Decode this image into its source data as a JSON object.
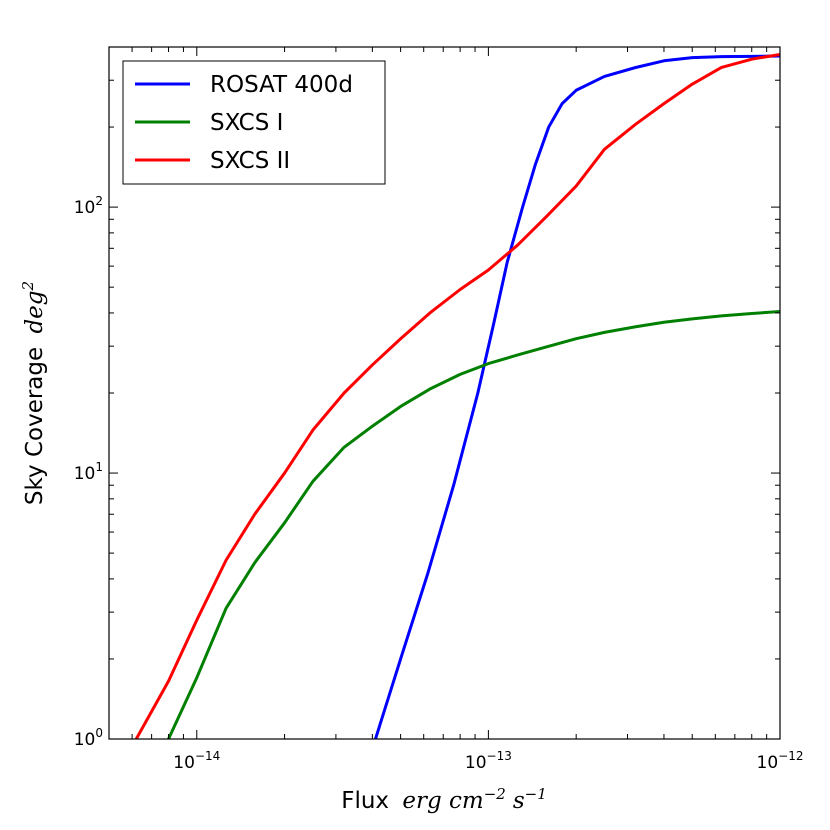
{
  "chart_data": {
    "type": "line",
    "xscale": "log",
    "yscale": "log",
    "xlim": [
      5e-15,
      1e-12
    ],
    "ylim": [
      1,
      400
    ],
    "grid": false,
    "legend_position": "top-left",
    "xlabel": {
      "text": "Flux",
      "math": "erg cm",
      "exp1": "−2",
      "mid": "s",
      "exp2": "−1"
    },
    "ylabel": {
      "text": "Sky Coverage",
      "math": "deg",
      "exp": "2"
    },
    "x_ticks": [
      {
        "value": 1e-14,
        "base": "10",
        "exp": "−14"
      },
      {
        "value": 1e-13,
        "base": "10",
        "exp": "−13"
      },
      {
        "value": 1e-12,
        "base": "10",
        "exp": "−12"
      }
    ],
    "y_ticks": [
      {
        "value": 1,
        "base": "10",
        "exp": "0"
      },
      {
        "value": 10,
        "base": "10",
        "exp": "1"
      },
      {
        "value": 100,
        "base": "10",
        "exp": "2"
      }
    ],
    "series": [
      {
        "name": "ROSAT 400d",
        "color": "#0000ff",
        "points": [
          [
            4.1e-14,
            1.0
          ],
          [
            5e-14,
            2.0
          ],
          [
            6.2e-14,
            4.2
          ],
          [
            7.6e-14,
            9.0
          ],
          [
            9.2e-14,
            20.0
          ],
          [
            1.04e-13,
            36.0
          ],
          [
            1.16e-13,
            62.0
          ],
          [
            1.31e-13,
            100.0
          ],
          [
            1.45e-13,
            145.0
          ],
          [
            1.61e-13,
            200.0
          ],
          [
            1.79e-13,
            245.0
          ],
          [
            2e-13,
            275.0
          ],
          [
            2.5e-13,
            310.0
          ],
          [
            3.2e-13,
            335.0
          ],
          [
            4e-13,
            355.0
          ],
          [
            5e-13,
            365.0
          ],
          [
            6.3e-13,
            368.0
          ],
          [
            8e-13,
            369.0
          ],
          [
            1e-12,
            370.0
          ]
        ]
      },
      {
        "name": "SXCS I",
        "color": "#008000",
        "points": [
          [
            8e-15,
            1.0
          ],
          [
            1e-14,
            1.7
          ],
          [
            1.26e-14,
            3.1
          ],
          [
            1.58e-14,
            4.6
          ],
          [
            2e-14,
            6.5
          ],
          [
            2.5e-14,
            9.3
          ],
          [
            3.2e-14,
            12.5
          ],
          [
            4e-14,
            15.0
          ],
          [
            5e-14,
            17.8
          ],
          [
            6.3e-14,
            20.7
          ],
          [
            8e-14,
            23.5
          ],
          [
            1e-13,
            25.8
          ],
          [
            1.26e-13,
            27.8
          ],
          [
            1.58e-13,
            29.8
          ],
          [
            2e-13,
            32.0
          ],
          [
            2.5e-13,
            33.8
          ],
          [
            3.2e-13,
            35.5
          ],
          [
            4e-13,
            36.9
          ],
          [
            5e-13,
            38.0
          ],
          [
            6.3e-13,
            39.0
          ],
          [
            8e-13,
            39.8
          ],
          [
            1e-12,
            40.5
          ]
        ]
      },
      {
        "name": "SXCS II",
        "color": "#ff0000",
        "points": [
          [
            6.2e-15,
            1.0
          ],
          [
            8e-15,
            1.65
          ],
          [
            1e-14,
            2.8
          ],
          [
            1.26e-14,
            4.7
          ],
          [
            1.58e-14,
            7.0
          ],
          [
            2e-14,
            10.0
          ],
          [
            2.5e-14,
            14.5
          ],
          [
            3.2e-14,
            20.0
          ],
          [
            4e-14,
            25.5
          ],
          [
            5e-14,
            32.0
          ],
          [
            6.3e-14,
            40.0
          ],
          [
            8e-14,
            49.0
          ],
          [
            1e-13,
            58.0
          ],
          [
            1.26e-13,
            72.0
          ],
          [
            1.58e-13,
            92.0
          ],
          [
            2e-13,
            120.0
          ],
          [
            2.5e-13,
            165.0
          ],
          [
            3.2e-13,
            205.0
          ],
          [
            4e-13,
            245.0
          ],
          [
            5e-13,
            290.0
          ],
          [
            6.3e-13,
            335.0
          ],
          [
            8e-13,
            360.0
          ],
          [
            1e-12,
            375.0
          ]
        ]
      }
    ]
  }
}
